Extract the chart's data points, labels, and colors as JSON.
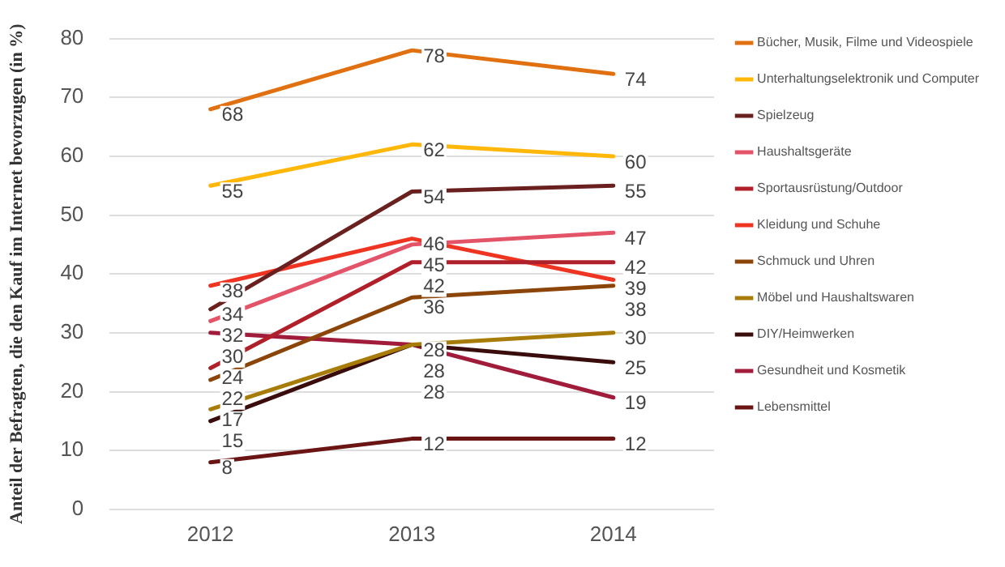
{
  "chart_data": {
    "type": "line",
    "ylabel": "Anteil der Befragten, die den Kauf im Internet bevorzugen (in %)",
    "categories": [
      "2012",
      "2013",
      "2014"
    ],
    "ylim": [
      0,
      80
    ],
    "yticks": [
      0,
      10,
      20,
      30,
      40,
      50,
      60,
      70,
      80
    ],
    "grid": "y",
    "legend": "right",
    "marker": "none",
    "line_style": "solid",
    "data_labels": true,
    "series": [
      {
        "name": "Bücher, Musik, Filme und Videospiele",
        "color": "#e07010",
        "values": [
          68,
          78,
          74
        ]
      },
      {
        "name": "Unterhaltungselektronik und Computer",
        "color": "#ffb80a",
        "values": [
          55,
          62,
          60
        ]
      },
      {
        "name": "Spielzeug",
        "color": "#6b2020",
        "values": [
          34,
          54,
          55
        ]
      },
      {
        "name": "Haushaltsgeräte",
        "color": "#e45468",
        "values": [
          32,
          45,
          47
        ]
      },
      {
        "name": "Sportausrüstung/Outdoor",
        "color": "#b0202a",
        "values": [
          24,
          42,
          42
        ]
      },
      {
        "name": "Kleidung und Schuhe",
        "color": "#f03422",
        "values": [
          38,
          46,
          39
        ]
      },
      {
        "name": "Schmuck und Uhren",
        "color": "#8c4508",
        "values": [
          22,
          36,
          38
        ]
      },
      {
        "name": "Möbel und Haushaltswaren",
        "color": "#a87c08",
        "values": [
          17,
          28,
          30
        ]
      },
      {
        "name": "DIY/Heimwerken",
        "color": "#3a0c0c",
        "values": [
          15,
          28,
          25
        ]
      },
      {
        "name": "Gesundheit und Kosmetik",
        "color": "#a01c3a",
        "values": [
          30,
          28,
          19
        ]
      },
      {
        "name": "Lebensmittel",
        "color": "#6a1414",
        "values": [
          8,
          12,
          12
        ]
      }
    ]
  }
}
